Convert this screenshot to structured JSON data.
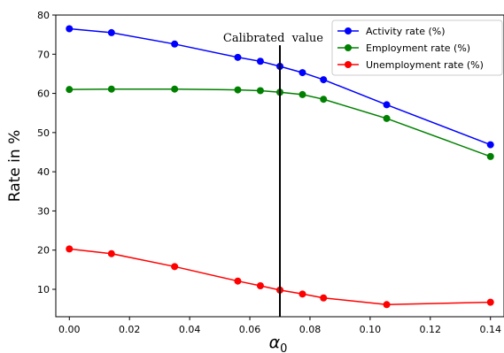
{
  "chart_data": {
    "type": "line",
    "title": "",
    "xlabel": "α",
    "xlabel_sub": "0",
    "ylabel": "Rate in %",
    "xlim": [
      -0.0045,
      0.1445
    ],
    "ylim": [
      3,
      80
    ],
    "x_ticks": [
      0.0,
      0.02,
      0.04,
      0.06,
      0.08,
      0.1,
      0.12,
      0.14
    ],
    "x_tick_labels": [
      "0.00",
      "0.02",
      "0.04",
      "0.06",
      "0.08",
      "0.10",
      "0.12",
      "0.14"
    ],
    "y_ticks": [
      10,
      20,
      30,
      40,
      50,
      60,
      70,
      80
    ],
    "y_tick_labels": [
      "10",
      "20",
      "30",
      "40",
      "50",
      "60",
      "70",
      "80"
    ],
    "grid": false,
    "legend_position": "top-right",
    "x": [
      0.0,
      0.014,
      0.035,
      0.056,
      0.0635,
      0.07,
      0.0775,
      0.0845,
      0.1055,
      0.14
    ],
    "series": [
      {
        "name": "Activity rate (%)",
        "color": "#0000ff",
        "values": [
          76.5,
          75.5,
          72.6,
          69.2,
          68.2,
          66.9,
          65.3,
          63.5,
          57.1,
          46.9
        ]
      },
      {
        "name": "Employment rate (%)",
        "color": "#008000",
        "values": [
          61.0,
          61.1,
          61.1,
          60.9,
          60.7,
          60.3,
          59.7,
          58.5,
          53.6,
          43.9
        ]
      },
      {
        "name": "Unemployment rate (%)",
        "color": "#ff0000",
        "values": [
          20.3,
          19.1,
          15.8,
          12.1,
          10.9,
          9.8,
          8.8,
          7.8,
          6.1,
          6.7
        ]
      }
    ],
    "annotations": [
      {
        "text": "Calibrated  value",
        "x": 0.07,
        "type": "vertical-line",
        "line_y_max": 72.3
      }
    ]
  }
}
